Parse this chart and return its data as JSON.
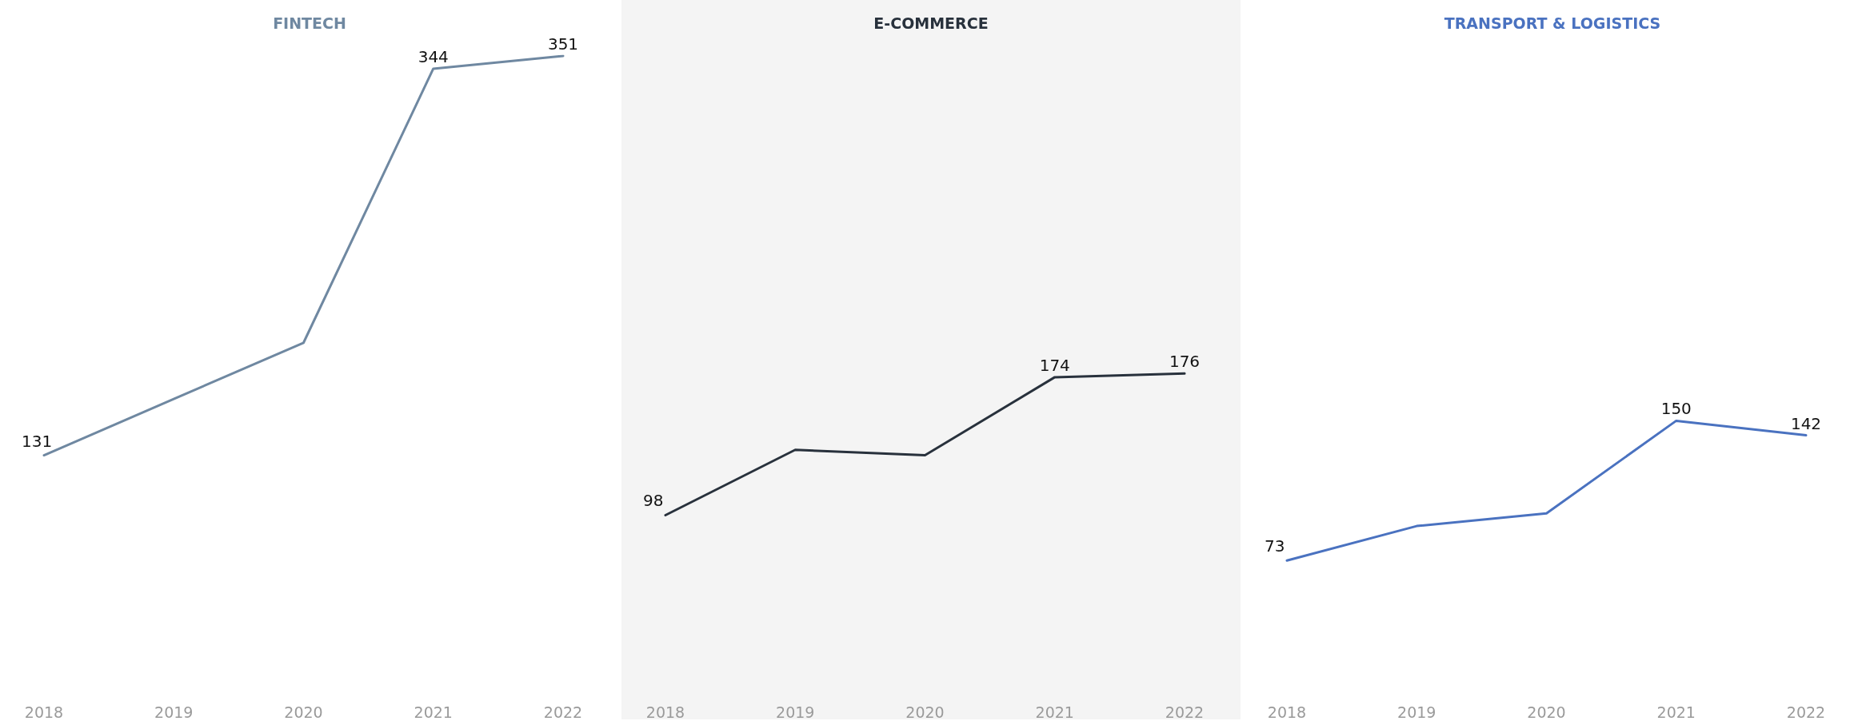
{
  "chart_data": [
    {
      "type": "line",
      "title": "FINTECH",
      "categories": [
        "2018",
        "2019",
        "2020",
        "2021",
        "2022"
      ],
      "tick_labels": "x",
      "grid": false,
      "marker": "none",
      "line_style": "solid",
      "series": [
        {
          "color": "#6f88a1",
          "values": [
            131,
            162,
            193,
            344,
            351
          ],
          "value_labels": [
            "131",
            null,
            null,
            "344",
            "351"
          ]
        }
      ]
    },
    {
      "type": "line",
      "title": "E-COMMERCE",
      "categories": [
        "2018",
        "2019",
        "2020",
        "2021",
        "2022"
      ],
      "tick_labels": "x",
      "grid": false,
      "marker": "none",
      "line_style": "solid",
      "series": [
        {
          "color": "#28313c",
          "values": [
            98,
            134,
            131,
            174,
            176
          ],
          "value_labels": [
            "98",
            null,
            null,
            "174",
            "176"
          ]
        }
      ]
    },
    {
      "type": "line",
      "title": "TRANSPORT & LOGISTICS",
      "categories": [
        "2018",
        "2019",
        "2020",
        "2021",
        "2022"
      ],
      "tick_labels": "x",
      "grid": false,
      "marker": "none",
      "line_style": "solid",
      "series": [
        {
          "color": "#4a72c0",
          "values": [
            73,
            92,
            99,
            150,
            142
          ],
          "value_labels": [
            "73",
            null,
            null,
            "150",
            "142"
          ]
        }
      ]
    }
  ]
}
